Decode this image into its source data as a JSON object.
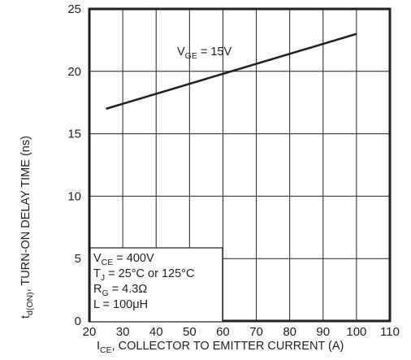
{
  "chart_data": {
    "type": "line",
    "xlabel": {
      "main": "I",
      "sub": "CE",
      "rest": ", COLLECTOR  TO  EMITTER  CURRENT (A)"
    },
    "ylabel": {
      "main": "t",
      "sub": "d(ON)",
      "rest": ", TURN-ON DELAY TIME (ns)"
    },
    "xlim": [
      20,
      110
    ],
    "ylim": [
      0,
      25
    ],
    "x_ticks": [
      "20",
      "30",
      "40",
      "50",
      "60",
      "70",
      "80",
      "90",
      "100",
      "110"
    ],
    "y_ticks": [
      "0",
      "5",
      "10",
      "15",
      "20",
      "25"
    ],
    "grid": true,
    "series": [
      {
        "name": {
          "main": "V",
          "sub": "GE",
          "rest": " = 15V"
        },
        "x": [
          25,
          100
        ],
        "y": [
          17.0,
          23.0
        ],
        "color": "#231f20"
      }
    ],
    "conditions": [
      {
        "main": "V",
        "sub": "CE",
        "rest": " = 400V"
      },
      {
        "main": "T",
        "sub": "J",
        "rest": " = 25°C or 125°C"
      },
      {
        "main": "R",
        "sub": "G",
        "rest": " = 4.3Ω"
      },
      {
        "main": "L = 100μH",
        "sub": "",
        "rest": ""
      }
    ]
  }
}
